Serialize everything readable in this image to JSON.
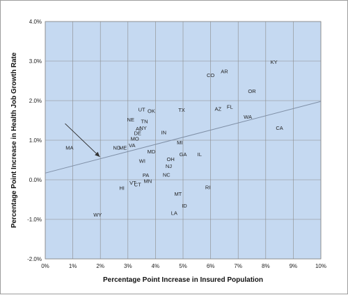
{
  "chart_data": {
    "type": "scatter",
    "title": "",
    "xlabel": "Percentage Point Increase in Insured Population",
    "ylabel": "Percentage Point Increase in Health Job Growth Rate",
    "xlim": [
      0,
      0.1
    ],
    "ylim": [
      -0.02,
      0.04
    ],
    "x_ticks": [
      0,
      0.01,
      0.02,
      0.03,
      0.04,
      0.05,
      0.06,
      0.07,
      0.08,
      0.09,
      0.1
    ],
    "x_tick_labels": [
      "0%",
      "1%",
      "2%",
      "3%",
      "4%",
      "5%",
      "6%",
      "7%",
      "8%",
      "9%",
      "10%"
    ],
    "y_ticks": [
      -0.02,
      -0.01,
      0,
      0.01,
      0.02,
      0.03,
      0.04
    ],
    "y_tick_labels": [
      "-2.0%",
      "-1.0%",
      "0.0%",
      "1.0%",
      "2.0%",
      "3.0%",
      "4.0%"
    ],
    "grid": true,
    "legend": "none",
    "plot_background": "#c5d9f1",
    "grid_color": "#8a8a8a",
    "trendline": {
      "x": [
        0,
        0.1
      ],
      "y": [
        0.0017,
        0.0198
      ],
      "color": "#7f8fa6"
    },
    "annotation_arrow": {
      "from": [
        0.0072,
        0.0142
      ],
      "to": [
        0.0198,
        0.0058
      ],
      "color": "#333333"
    },
    "points": [
      {
        "label": "KY",
        "x": 0.083,
        "y": 0.0298
      },
      {
        "label": "AR",
        "x": 0.065,
        "y": 0.0275
      },
      {
        "label": "CO",
        "x": 0.06,
        "y": 0.0265
      },
      {
        "label": "OR",
        "x": 0.075,
        "y": 0.0225
      },
      {
        "label": "FL",
        "x": 0.067,
        "y": 0.0185
      },
      {
        "label": "AZ",
        "x": 0.0627,
        "y": 0.018
      },
      {
        "label": "TX",
        "x": 0.0495,
        "y": 0.0177
      },
      {
        "label": "UT",
        "x": 0.035,
        "y": 0.0178
      },
      {
        "label": "OK",
        "x": 0.0385,
        "y": 0.0175
      },
      {
        "label": "WA",
        "x": 0.0735,
        "y": 0.016
      },
      {
        "label": "CA",
        "x": 0.085,
        "y": 0.0132
      },
      {
        "label": "NE",
        "x": 0.031,
        "y": 0.0153
      },
      {
        "label": "TN",
        "x": 0.036,
        "y": 0.0148
      },
      {
        "label": "AL",
        "x": 0.034,
        "y": 0.013
      },
      {
        "label": "NY",
        "x": 0.0355,
        "y": 0.0132
      },
      {
        "label": "DE",
        "x": 0.0335,
        "y": 0.0118
      },
      {
        "label": "IN",
        "x": 0.043,
        "y": 0.012
      },
      {
        "label": "MO",
        "x": 0.0325,
        "y": 0.0104
      },
      {
        "label": "MI",
        "x": 0.0488,
        "y": 0.0095
      },
      {
        "label": "VA",
        "x": 0.0315,
        "y": 0.0088
      },
      {
        "label": "ND",
        "x": 0.026,
        "y": 0.0082
      },
      {
        "label": "ME",
        "x": 0.0282,
        "y": 0.0082
      },
      {
        "label": "MA",
        "x": 0.0088,
        "y": 0.0082
      },
      {
        "label": "MD",
        "x": 0.0385,
        "y": 0.0072
      },
      {
        "label": "GA",
        "x": 0.05,
        "y": 0.0065
      },
      {
        "label": "IL",
        "x": 0.056,
        "y": 0.0065
      },
      {
        "label": "OH",
        "x": 0.0455,
        "y": 0.0053
      },
      {
        "label": "WI",
        "x": 0.0352,
        "y": 0.0048
      },
      {
        "label": "NJ",
        "x": 0.0448,
        "y": 0.0035
      },
      {
        "label": "NC",
        "x": 0.044,
        "y": 0.0013
      },
      {
        "label": "PA",
        "x": 0.0365,
        "y": 0.0012
      },
      {
        "label": "MN",
        "x": 0.0372,
        "y": -0.0003
      },
      {
        "label": "VT",
        "x": 0.0318,
        "y": -0.0007
      },
      {
        "label": "CT",
        "x": 0.0335,
        "y": -0.0011
      },
      {
        "label": "HI",
        "x": 0.0278,
        "y": -0.002
      },
      {
        "label": "RI",
        "x": 0.059,
        "y": -0.0018
      },
      {
        "label": "MT",
        "x": 0.0482,
        "y": -0.0035
      },
      {
        "label": "ID",
        "x": 0.0505,
        "y": -0.0065
      },
      {
        "label": "LA",
        "x": 0.0468,
        "y": -0.0083
      },
      {
        "label": "WY",
        "x": 0.019,
        "y": -0.0088
      }
    ]
  }
}
